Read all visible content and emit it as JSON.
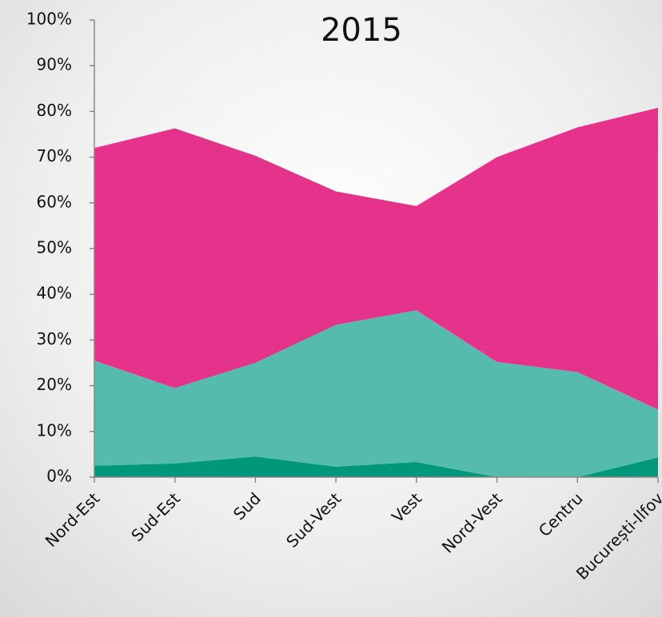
{
  "chart_data": {
    "type": "stacked_area",
    "title": "2015",
    "categories": [
      "Nord-Est",
      "Sud-Est",
      "Sud",
      "Sud-Vest",
      "Vest",
      "Nord-Vest",
      "Centru",
      "București-Ilfov"
    ],
    "series": [
      {
        "color": "#00977a",
        "values": [
          2.5,
          3,
          4.5,
          2.3,
          3.3,
          0,
          0,
          4.3
        ]
      },
      {
        "color": "#55bbad",
        "values": [
          23,
          16.5,
          20.5,
          31,
          33.2,
          25.2,
          23,
          10.5
        ]
      },
      {
        "color": "#e5338b",
        "values": [
          46.5,
          56.8,
          45.3,
          29.2,
          22.8,
          44.8,
          53.5,
          66
        ]
      }
    ],
    "ylim": [
      0,
      100
    ],
    "yticks": [
      {
        "value": 0,
        "label": "0%"
      },
      {
        "value": 10,
        "label": "10%"
      },
      {
        "value": 20,
        "label": "20%"
      },
      {
        "value": 30,
        "label": "30%"
      },
      {
        "value": 40,
        "label": "40%"
      },
      {
        "value": 50,
        "label": "50%"
      },
      {
        "value": 60,
        "label": "60%"
      },
      {
        "value": 70,
        "label": "70%"
      },
      {
        "value": 80,
        "label": "80%"
      },
      {
        "value": 90,
        "label": "90%"
      },
      {
        "value": 100,
        "label": "100%"
      }
    ]
  }
}
